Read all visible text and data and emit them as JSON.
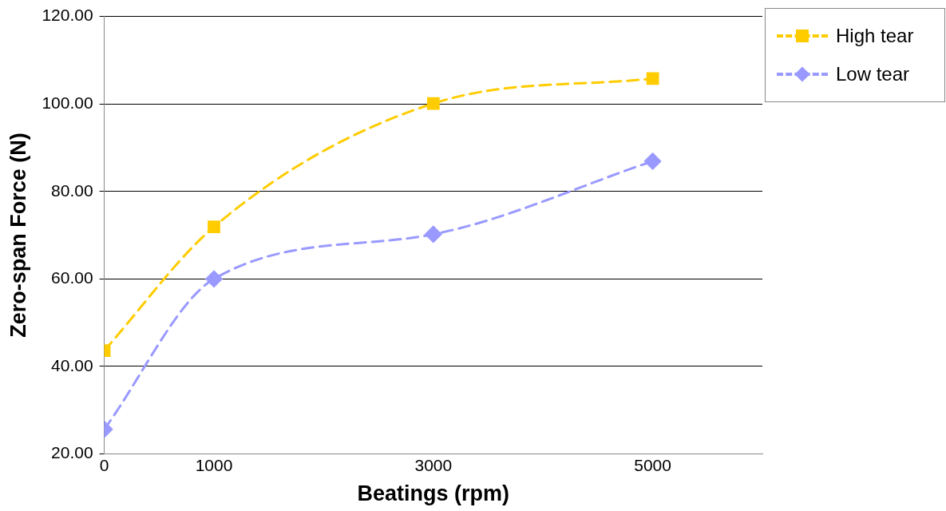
{
  "chart_data": {
    "type": "line",
    "xlabel": "Beatings (rpm)",
    "ylabel": "Zero-span Force (N)",
    "xlim": [
      0,
      6000
    ],
    "xticks": [
      0,
      1000,
      3000,
      5000
    ],
    "ylim": [
      20,
      120
    ],
    "yticks": [
      {
        "value": 20,
        "label": "20.00"
      },
      {
        "value": 40,
        "label": "40.00"
      },
      {
        "value": 60,
        "label": "60.00"
      },
      {
        "value": 80,
        "label": "80.00"
      },
      {
        "value": 100,
        "label": "100.00"
      },
      {
        "value": 120,
        "label": "120.00"
      }
    ],
    "grid": "y",
    "legend": "top right",
    "line_style": "dashed",
    "x": [
      0,
      1000,
      3000,
      5000
    ],
    "series": [
      {
        "name": "High tear",
        "color": "#ffcc00",
        "marker": "square",
        "values": [
          43.6,
          71.9,
          100.1,
          105.8
        ]
      },
      {
        "name": "Low tear",
        "color": "#9999ff",
        "marker": "diamond",
        "values": [
          25.6,
          60.0,
          70.2,
          86.9
        ]
      }
    ]
  }
}
